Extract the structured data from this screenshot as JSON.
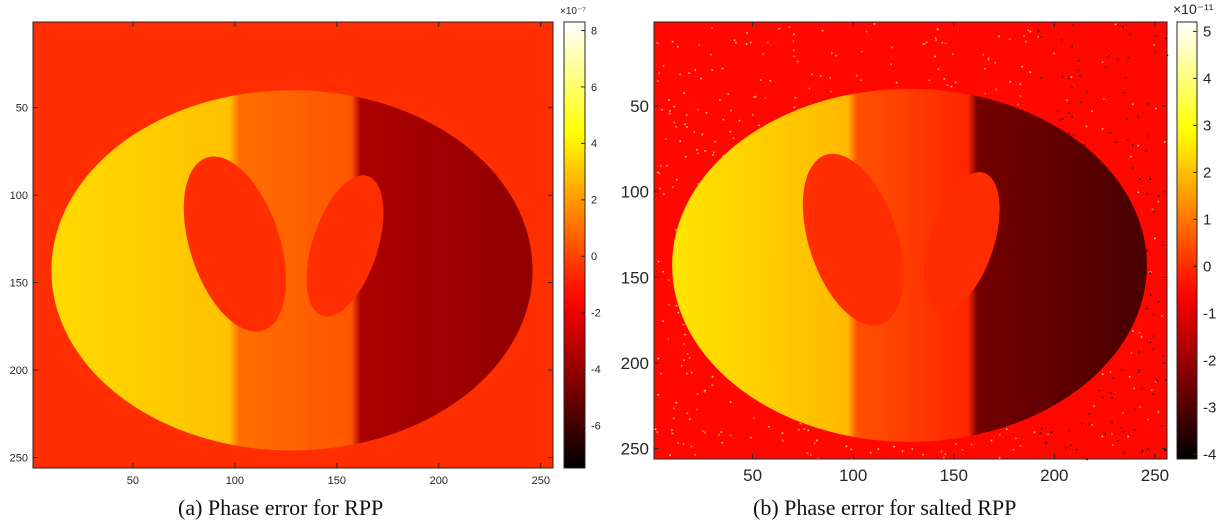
{
  "colors": {
    "background_orange": "#ff5500",
    "colormap": "hot"
  },
  "chart_data": [
    {
      "type": "heatmap",
      "caption": "(a)  Phase error for RPP",
      "title": "",
      "xlabel": "",
      "ylabel": "",
      "xlim": [
        1,
        256
      ],
      "ylim": [
        256,
        1
      ],
      "xticks": [
        "50",
        "100",
        "150",
        "200",
        "250"
      ],
      "yticks": [
        "50",
        "100",
        "150",
        "200",
        "250"
      ],
      "colorbar": {
        "min": -7.5,
        "max": 8.3,
        "ticks": [
          "8",
          "6",
          "4",
          "2",
          "0",
          "-2",
          "-4",
          "-6"
        ],
        "exponent": "×10⁻⁷"
      },
      "background_value": -0.5,
      "ellipse_strips": [
        {
          "x_range": [
            0,
            100
          ],
          "value": 3.5
        },
        {
          "x_range": [
            100,
            160
          ],
          "value": 1.0
        },
        {
          "x_range": [
            160,
            256
          ],
          "value": -3.5
        }
      ],
      "inner_ellipses_value": -0.5,
      "salted": false
    },
    {
      "type": "heatmap",
      "caption": "(b)  Phase error for salted RPP",
      "title": "",
      "xlabel": "",
      "ylabel": "",
      "xlim": [
        1,
        256
      ],
      "ylim": [
        256,
        1
      ],
      "xticks": [
        "50",
        "100",
        "150",
        "200",
        "250"
      ],
      "yticks": [
        "50",
        "100",
        "150",
        "200",
        "250"
      ],
      "colorbar": {
        "min": -4.1,
        "max": 5.2,
        "ticks": [
          "5",
          "4",
          "3",
          "2",
          "1",
          "0",
          "-1",
          "-2",
          "-3",
          "-4"
        ],
        "exponent": "×10⁻¹¹"
      },
      "background_value": -0.5,
      "ellipse_strips": [
        {
          "x_range": [
            0,
            100
          ],
          "value": 2.5
        },
        {
          "x_range": [
            100,
            160
          ],
          "value": 0.5
        },
        {
          "x_range": [
            160,
            256
          ],
          "value": -2.5
        }
      ],
      "inner_ellipses_value": 0.0,
      "salted": true
    }
  ]
}
